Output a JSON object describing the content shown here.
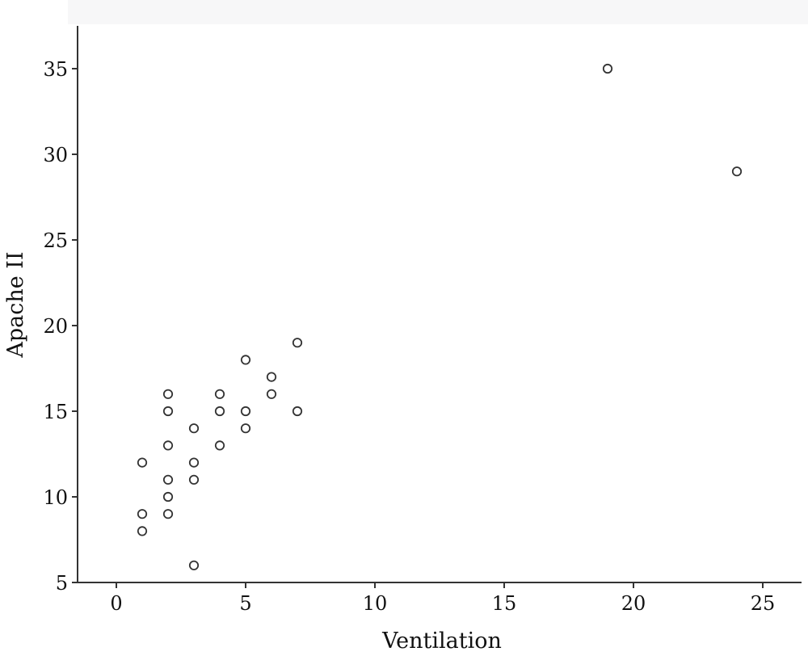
{
  "chart_data": {
    "type": "scatter",
    "title": "",
    "xlabel": "Ventilation",
    "ylabel": "Apache II",
    "xlim": [
      -1.5,
      26.5
    ],
    "ylim": [
      5,
      37.5
    ],
    "xticks": [
      0,
      5,
      10,
      15,
      20,
      25
    ],
    "yticks": [
      5,
      10,
      15,
      20,
      25,
      30,
      35
    ],
    "grid": false,
    "legend": "none",
    "colors": {
      "axis": "#333333",
      "marker_edge": "#333333",
      "marker_fill": "#ffffff",
      "text": "#111111",
      "header_band": "#f7f7f8"
    },
    "points": [
      {
        "x": 1,
        "y": 12
      },
      {
        "x": 1,
        "y": 9
      },
      {
        "x": 1,
        "y": 8
      },
      {
        "x": 2,
        "y": 16
      },
      {
        "x": 2,
        "y": 15
      },
      {
        "x": 2,
        "y": 13
      },
      {
        "x": 2,
        "y": 11
      },
      {
        "x": 2,
        "y": 10
      },
      {
        "x": 2,
        "y": 9
      },
      {
        "x": 3,
        "y": 14
      },
      {
        "x": 3,
        "y": 12
      },
      {
        "x": 3,
        "y": 11
      },
      {
        "x": 3,
        "y": 6
      },
      {
        "x": 4,
        "y": 16
      },
      {
        "x": 4,
        "y": 15
      },
      {
        "x": 4,
        "y": 13
      },
      {
        "x": 5,
        "y": 18
      },
      {
        "x": 5,
        "y": 15
      },
      {
        "x": 5,
        "y": 14
      },
      {
        "x": 6,
        "y": 17
      },
      {
        "x": 6,
        "y": 16
      },
      {
        "x": 7,
        "y": 19
      },
      {
        "x": 7,
        "y": 15
      },
      {
        "x": 19,
        "y": 35
      },
      {
        "x": 24,
        "y": 29
      }
    ]
  }
}
